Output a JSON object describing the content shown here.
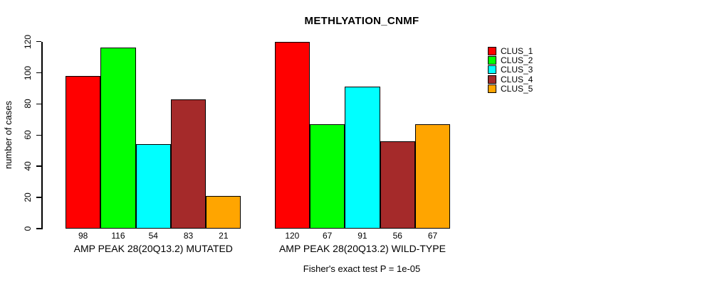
{
  "chart_data": {
    "type": "bar",
    "title": "METHLYATION_CNMF",
    "ylabel": "number of cases",
    "xlabel": "",
    "ylim": [
      0,
      120
    ],
    "yticks": [
      0,
      20,
      40,
      60,
      80,
      100,
      120
    ],
    "grid": false,
    "bar_value_labels_shown": true,
    "categories": [
      "AMP PEAK 28(20Q13.2) MUTATED",
      "AMP PEAK 28(20Q13.2) WILD-TYPE"
    ],
    "series": [
      {
        "name": "CLUS_1",
        "color": "#ff0000",
        "values": [
          98,
          120
        ]
      },
      {
        "name": "CLUS_2",
        "color": "#00ff00",
        "values": [
          116,
          67
        ]
      },
      {
        "name": "CLUS_3",
        "color": "#00ffff",
        "values": [
          54,
          91
        ]
      },
      {
        "name": "CLUS_4",
        "color": "#a52a2a",
        "values": [
          83,
          56
        ]
      },
      {
        "name": "CLUS_5",
        "color": "#ffa500",
        "values": [
          21,
          67
        ]
      }
    ],
    "legend": {
      "position": "right",
      "entries": [
        "CLUS_1",
        "CLUS_2",
        "CLUS_3",
        "CLUS_4",
        "CLUS_5"
      ]
    },
    "caption": "Fisher's exact test P = 1e-05",
    "colors": {
      "axis": "#000000",
      "bar_border": "#000000",
      "text": "#000000",
      "background": "#ffffff"
    }
  }
}
